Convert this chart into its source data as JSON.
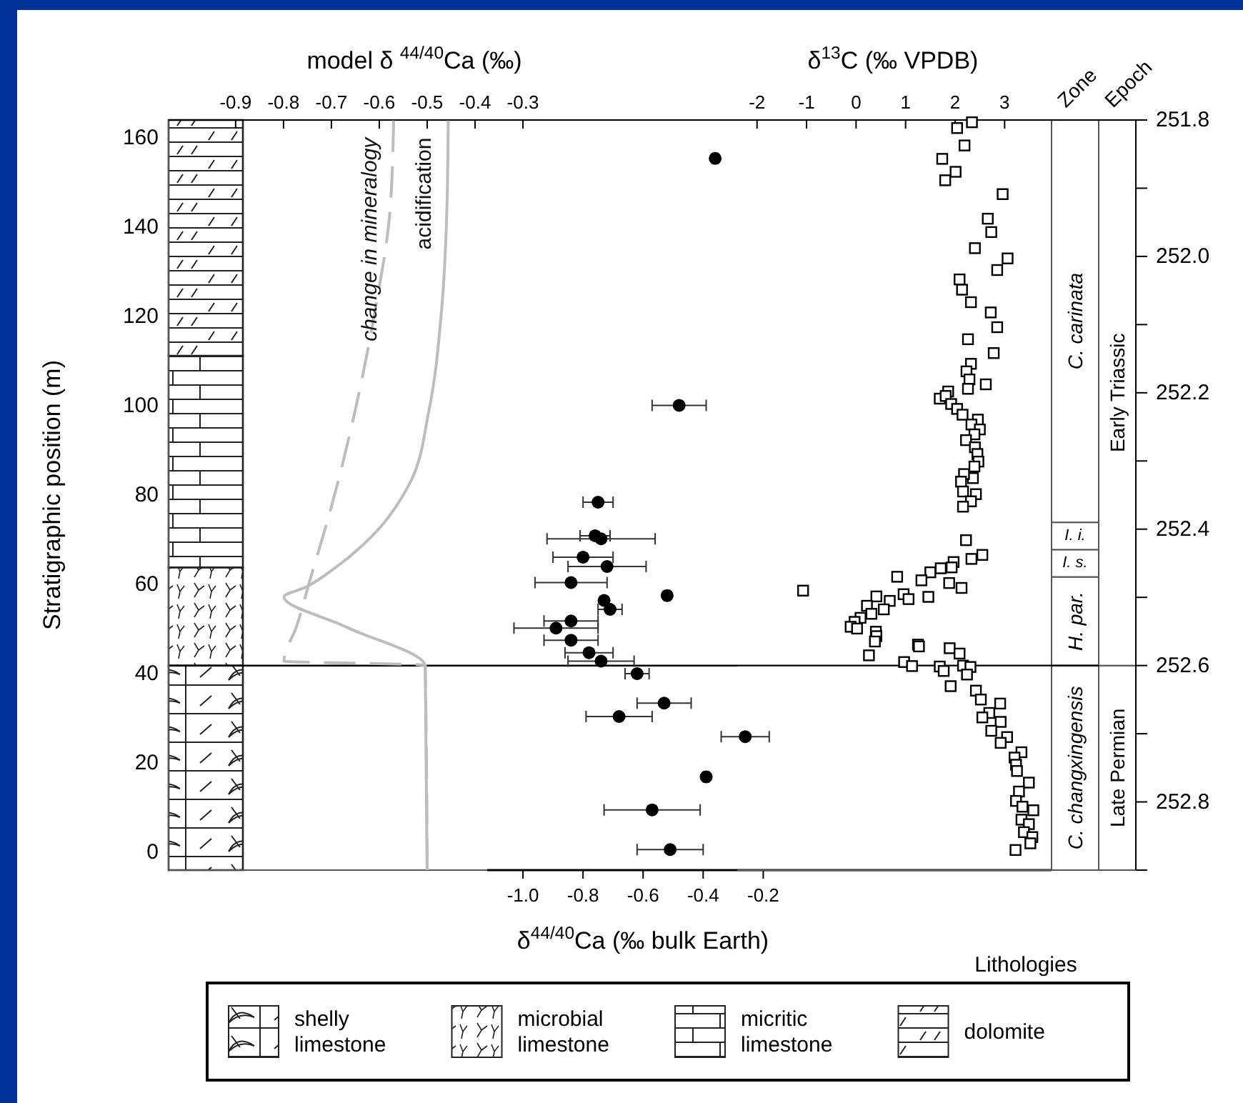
{
  "chart_data": [
    {
      "type": "scatter",
      "xlabel": "δ$^{44/40}$Ca (‰ bulk Earth)",
      "ylabel": "Stratigraphic position (m)",
      "xlim": [
        -2.18,
        0.76
      ],
      "xticks": [
        {
          "value": -1,
          "label": "-1.0"
        },
        -0.8,
        -0.6,
        -0.4,
        -0.2
      ],
      "ylim": [
        -4,
        164
      ],
      "yticks": [
        0,
        20,
        40,
        60,
        80,
        100,
        120,
        140,
        160
      ],
      "legend": "bottom",
      "legend_title": "Lithologies",
      "ref_lines": [
        {
          "axis": "y",
          "value": 41.8
        }
      ],
      "bands": [
        {
          "axis": "y",
          "from": -4,
          "to": 41.8,
          "label": "shelly limestone"
        },
        {
          "axis": "y",
          "from": 41.8,
          "to": 63.8,
          "label": "microbial limestone"
        },
        {
          "axis": "y",
          "from": 63.8,
          "to": 111.2,
          "label": "micritic limestone"
        },
        {
          "axis": "y",
          "from": 111.2,
          "to": 164,
          "label": "dolomite"
        }
      ],
      "series": [
        {
          "color": "#000000",
          "marker": "circle",
          "x": [
            -0.36,
            -0.48,
            -0.75,
            -0.76,
            -0.74,
            -0.8,
            -0.72,
            -0.84,
            -0.52,
            -0.73,
            -0.71,
            -0.84,
            -0.89,
            -0.84,
            -0.78,
            -0.74,
            -0.62,
            -0.53,
            -0.68,
            -0.26,
            -0.39,
            -0.57,
            -0.51
          ],
          "values": [
            155.4,
            100.1,
            78.4,
            70.9,
            70.2,
            66.1,
            64,
            60.4,
            57.5,
            56.4,
            54.4,
            51.8,
            50.2,
            47.5,
            44.7,
            42.8,
            40,
            33.4,
            30.4,
            25.9,
            16.9,
            9.5,
            0.6
          ],
          "xerrors": [
            0.01,
            0.09,
            0.05,
            0.05,
            0.18,
            0.1,
            0.13,
            0.12,
            0.01,
            null,
            0.04,
            0.09,
            0.14,
            0.09,
            0.08,
            0.11,
            0.04,
            0.09,
            0.11,
            0.08,
            0.01,
            0.16,
            0.11
          ]
        }
      ]
    },
    {
      "type": "line",
      "xlabel": "model δ $^{44/40}$Ca (‰)",
      "xlim": [
        -1.04,
        0.81
      ],
      "xticks": [
        -0.9,
        -0.8,
        -0.7,
        -0.6,
        -0.5,
        -0.4,
        -0.3
      ],
      "ylim": [
        -4,
        164
      ],
      "tick_labels": "x",
      "series": [
        {
          "name": "change in mineralogy",
          "color": "#bdbdbd",
          "line_style": "dashed",
          "marker": "none",
          "x": [
            -0.57,
            -0.578,
            -0.609,
            -0.65,
            -0.701,
            -0.743,
            -0.773,
            -0.799,
            -0.504,
            -0.5
          ],
          "values": [
            163.9,
            143.2,
            121.2,
            99.1,
            77,
            61.6,
            50.5,
            42.8,
            41.9,
            -4
          ]
        },
        {
          "name": "acidification",
          "color": "#bdbdbd",
          "line_style": "solid",
          "marker": "none",
          "x": [
            -0.456,
            -0.459,
            -0.47,
            -0.496,
            -0.537,
            -0.609,
            -0.691,
            -0.753,
            -0.799,
            -0.67,
            -0.504,
            -0.5
          ],
          "values": [
            163.9,
            143.2,
            121.2,
            99.1,
            82.5,
            71.5,
            63.8,
            59.4,
            57.2,
            50.5,
            41.7,
            -4
          ]
        }
      ]
    },
    {
      "type": "scatter",
      "xlabel": "δ$^{13}$C (‰ VPDB)",
      "xlim": [
        -2.4,
        5.65
      ],
      "xticks": [
        -2,
        -1,
        0,
        1,
        2,
        3
      ],
      "ylim": [
        -4,
        164
      ],
      "y2lim": [
        252.9,
        251.8
      ],
      "y2ticks": [
        251.8,
        {
          "value": 251.9,
          "label": null
        },
        {
          "value": 252,
          "label": "252.0"
        },
        {
          "value": 252.1,
          "label": null
        },
        252.2,
        {
          "value": 252.3,
          "label": null
        },
        252.4,
        {
          "value": 252.5,
          "label": null
        },
        252.6,
        {
          "value": 252.7,
          "label": null
        },
        252.8,
        {
          "value": 252.9,
          "label": null
        }
      ],
      "annotations": [
        "Zone",
        "Epoch"
      ],
      "ref_lines": [
        {
          "axis": "y2",
          "value": 252.6
        }
      ],
      "bands": [
        {
          "axis": "y2",
          "from": 252.9,
          "to": 252.6,
          "label": "C. changxingensis"
        },
        {
          "axis": "y2",
          "from": 252.6,
          "to": 252.47,
          "label": "H. par."
        },
        {
          "axis": "y2",
          "from": 252.47,
          "to": 252.43,
          "label": "I. s."
        },
        {
          "axis": "y2",
          "from": 252.43,
          "to": 252.39,
          "label": "I. i."
        },
        {
          "axis": "y2",
          "from": 252.39,
          "to": 251.8,
          "label": "C. carinata"
        },
        {
          "axis": "y2",
          "from": 252.9,
          "to": 252.6,
          "label": "Late Permian"
        },
        {
          "axis": "y2",
          "from": 252.6,
          "to": 251.8,
          "label": "Early Triassic"
        }
      ],
      "series": [
        {
          "color": "#000000",
          "marker": "square",
          "x": [
            2.34,
            2.04,
            2.19,
            1.74,
            2.01,
            1.8,
            2.96,
            2.66,
            2.73,
            2.4,
            3.06,
            2.85,
            2.09,
            2.14,
            2.32,
            2.72,
            2.85,
            2.26,
            2.78,
            2.32,
            2.23,
            2.29,
            2.62,
            2.26,
            1.86,
            1.69,
            1.81,
            1.92,
            2.04,
            2.15,
            2.46,
            2.33,
            2.5,
            2.39,
            2.22,
            2.4,
            2.45,
            2.47,
            2.39,
            2.36,
            2.18,
            2.12,
            2.16,
            2.42,
            2.32,
            2.16,
            2.22,
            2.55,
            2.33,
            1.97,
            1.93,
            1.71,
            1.5,
            1.32,
            0.83,
            0.96,
            1.06,
            1.46,
            1.88,
            2.13,
            -1.07,
            0.41,
            0.68,
            0.56,
            0.22,
            0.31,
            0.09,
            -0.03,
            -0.11,
            0.02,
            0.4,
            0.41,
            0.38,
            1.25,
            1.27,
            0.26,
            1.89,
            2.09,
            0.97,
            1.13,
            1.69,
            1.77,
            2.16,
            2.31,
            2.24,
            1.91,
            2.42,
            2.52,
            2.91,
            2.69,
            2.55,
            2.92,
            2.73,
            3.05,
            2.92,
            3.34,
            3.2,
            3.23,
            3.25,
            3.49,
            3.29,
            3.23,
            3.36,
            3.58,
            3.34,
            3.49,
            3.39,
            3.56,
            3.52,
            3.22
          ],
          "values": [
            163.5,
            162.2,
            158.3,
            155.3,
            152.4,
            150.5,
            147.4,
            141.9,
            138.9,
            135.3,
            133,
            130.4,
            128.3,
            126,
            123.2,
            120.9,
            117.6,
            114.9,
            111.8,
            109.4,
            107.7,
            105.9,
            104.8,
            103.8,
            103.2,
            101.6,
            102.2,
            100.4,
            99.3,
            98,
            96.9,
            95.8,
            94.7,
            93.6,
            92.3,
            90.7,
            89.2,
            87.5,
            86.4,
            83.8,
            84.7,
            83,
            80.8,
            80.2,
            78.6,
            77.4,
            69.9,
            66.6,
            65.7,
            65,
            63.8,
            63.6,
            62.7,
            60.9,
            61.7,
            57.8,
            56.7,
            57.2,
            60.3,
            59.2,
            58.6,
            57.3,
            56.3,
            54.4,
            55.2,
            53.4,
            52.5,
            51.6,
            50.5,
            50.1,
            49.4,
            48.4,
            47.2,
            46.5,
            46.1,
            44.1,
            45.7,
            44.5,
            42.6,
            41.7,
            41.6,
            40.6,
            41.8,
            41.5,
            39.8,
            37.2,
            36.2,
            34.2,
            33.3,
            31.2,
            30.2,
            29.2,
            27.2,
            25.8,
            24.5,
            22.4,
            21.2,
            19.6,
            18.2,
            15.6,
            13.6,
            11.5,
            10.2,
            9.4,
            7.3,
            6.3,
            4.5,
            3.4,
            2,
            0.5
          ]
        }
      ]
    }
  ]
}
